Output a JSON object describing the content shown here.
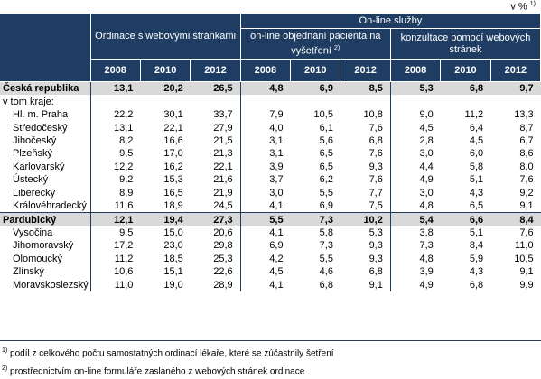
{
  "unit": {
    "text": "v %",
    "note": "1)"
  },
  "header": {
    "group_a": "Ordinace s webovými stránkami",
    "group_b": "On-line služby",
    "sub_b1": "on-line objednání pacienta na vyšetření",
    "sub_b1_note": "2)",
    "sub_b2": "konzultace pomocí webových stránek",
    "years": [
      "2008",
      "2010",
      "2012",
      "2008",
      "2010",
      "2012",
      "2008",
      "2010",
      "2012"
    ]
  },
  "rows": [
    {
      "name": "Česká republika",
      "values": [
        "13,1",
        "20,2",
        "26,5",
        "4,8",
        "6,9",
        "8,5",
        "5,3",
        "6,8",
        "9,7"
      ],
      "highlight": true,
      "indent": false
    },
    {
      "name": "v tom kraje:",
      "values": [
        "",
        "",
        "",
        "",
        "",
        "",
        "",
        "",
        ""
      ],
      "highlight": false,
      "indent": false
    },
    {
      "name": "Hl. m. Praha",
      "values": [
        "22,2",
        "30,1",
        "33,7",
        "7,9",
        "10,5",
        "10,8",
        "9,0",
        "11,2",
        "13,3"
      ],
      "highlight": false,
      "indent": true
    },
    {
      "name": "Středočeský",
      "values": [
        "13,1",
        "22,1",
        "27,9",
        "4,0",
        "6,1",
        "7,6",
        "4,5",
        "6,4",
        "8,7"
      ],
      "highlight": false,
      "indent": true
    },
    {
      "name": "Jihočeský",
      "values": [
        "8,2",
        "16,6",
        "21,5",
        "3,1",
        "5,6",
        "6,8",
        "2,8",
        "4,5",
        "6,7"
      ],
      "highlight": false,
      "indent": true
    },
    {
      "name": "Plzeňský",
      "values": [
        "9,5",
        "17,0",
        "21,3",
        "3,1",
        "6,5",
        "7,6",
        "3,0",
        "6,0",
        "8,6"
      ],
      "highlight": false,
      "indent": true
    },
    {
      "name": "Karlovarský",
      "values": [
        "12,2",
        "16,2",
        "22,1",
        "3,9",
        "6,5",
        "9,3",
        "4,4",
        "5,8",
        "8,0"
      ],
      "highlight": false,
      "indent": true
    },
    {
      "name": "Ústecký",
      "values": [
        "9,2",
        "15,3",
        "21,6",
        "3,7",
        "6,2",
        "7,6",
        "4,9",
        "5,1",
        "7,6"
      ],
      "highlight": false,
      "indent": true
    },
    {
      "name": "Liberecký",
      "values": [
        "8,9",
        "16,5",
        "21,9",
        "3,0",
        "5,5",
        "7,7",
        "3,0",
        "4,3",
        "9,2"
      ],
      "highlight": false,
      "indent": true
    },
    {
      "name": "Královéhradecký",
      "values": [
        "11,6",
        "18,9",
        "24,5",
        "4,1",
        "6,9",
        "7,5",
        "4,8",
        "6,5",
        "9,1"
      ],
      "highlight": false,
      "indent": true
    },
    {
      "name": "Pardubický",
      "values": [
        "12,1",
        "19,4",
        "27,3",
        "5,5",
        "7,3",
        "10,2",
        "5,4",
        "6,6",
        "8,4"
      ],
      "highlight": true,
      "indent": false
    },
    {
      "name": "Vysočina",
      "values": [
        "9,5",
        "15,0",
        "20,6",
        "4,1",
        "5,8",
        "5,3",
        "3,8",
        "5,1",
        "7,6"
      ],
      "highlight": false,
      "indent": true
    },
    {
      "name": "Jihomoravský",
      "values": [
        "17,2",
        "23,0",
        "29,8",
        "6,9",
        "7,3",
        "9,3",
        "7,3",
        "8,4",
        "11,0"
      ],
      "highlight": false,
      "indent": true
    },
    {
      "name": "Olomoucký",
      "values": [
        "11,2",
        "18,5",
        "25,3",
        "4,2",
        "5,5",
        "9,3",
        "4,8",
        "5,9",
        "10,5"
      ],
      "highlight": false,
      "indent": true
    },
    {
      "name": "Zlínský",
      "values": [
        "10,6",
        "15,1",
        "22,6",
        "4,5",
        "4,6",
        "6,8",
        "3,9",
        "4,3",
        "9,1"
      ],
      "highlight": false,
      "indent": true
    },
    {
      "name": "Moravskoslezský",
      "values": [
        "11,0",
        "19,0",
        "28,9",
        "4,1",
        "6,8",
        "9,1",
        "4,9",
        "6,8",
        "9,9"
      ],
      "highlight": false,
      "indent": true
    }
  ],
  "footnotes": [
    {
      "mark": "1)",
      "text": "podíl z celkového počtu samostatných ordinací lékaře, které se zúčastnily šetření"
    },
    {
      "mark": "2)",
      "text": "prostřednictvím on-line formuláře zaslaného z webových stránek ordinace"
    }
  ]
}
